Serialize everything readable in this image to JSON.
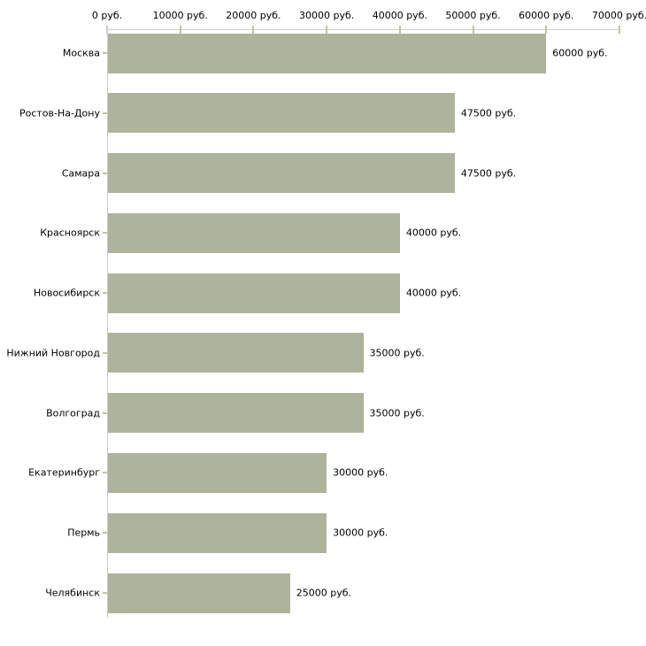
{
  "chart_data": {
    "type": "bar",
    "orientation": "horizontal",
    "title": "",
    "xlabel": "",
    "ylabel": "",
    "unit": "руб.",
    "categories": [
      "Москва",
      "Ростов-На-Дону",
      "Самара",
      "Красноярск",
      "Новосибирск",
      "Нижний Новгород",
      "Волгоград",
      "Екатеринбург",
      "Пермь",
      "Челябинск"
    ],
    "values": [
      60000,
      47500,
      47500,
      40000,
      40000,
      35000,
      35000,
      30000,
      30000,
      25000
    ],
    "value_labels": [
      "60000 руб.",
      "47500 руб.",
      "47500 руб.",
      "40000 руб.",
      "40000 руб.",
      "35000 руб.",
      "35000 руб.",
      "30000 руб.",
      "30000 руб.",
      "25000 руб."
    ],
    "x_ticks": [
      0,
      10000,
      20000,
      30000,
      40000,
      50000,
      60000,
      70000
    ],
    "x_tick_labels": [
      "0 руб.",
      "10000 руб.",
      "20000 руб.",
      "30000 руб.",
      "40000 руб.",
      "50000 руб.",
      "60000 руб.",
      "70000 руб."
    ],
    "xlim": [
      0,
      70000
    ],
    "grid": false,
    "legend": null
  },
  "colors": {
    "bar": "#aeb49b",
    "axis_line": "#cccccc",
    "tick_mark": "#c2c3a0",
    "text": "#000000",
    "background": "#ffffff"
  }
}
